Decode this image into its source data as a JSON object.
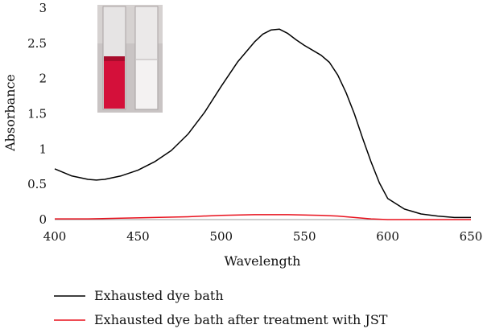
{
  "chart_data": {
    "type": "line",
    "title": "",
    "xlabel": "Wavelength",
    "ylabel": "Absorbance",
    "xlim": [
      400,
      650
    ],
    "ylim": [
      0,
      3
    ],
    "xticks": [
      400,
      450,
      500,
      550,
      600,
      650
    ],
    "yticks": [
      0,
      0.5,
      1,
      1.5,
      2,
      2.5,
      3
    ],
    "grid": false,
    "legend_position": "bottom",
    "series": [
      {
        "name": "Exhausted dye bath",
        "color": "#000000",
        "x": [
          400,
          410,
          420,
          425,
          430,
          440,
          450,
          460,
          470,
          480,
          490,
          500,
          510,
          520,
          525,
          530,
          535,
          540,
          545,
          550,
          560,
          565,
          570,
          575,
          580,
          585,
          590,
          595,
          600,
          610,
          620,
          630,
          640,
          650
        ],
        "y": [
          0.72,
          0.62,
          0.57,
          0.56,
          0.57,
          0.62,
          0.7,
          0.82,
          0.98,
          1.21,
          1.52,
          1.89,
          2.24,
          2.52,
          2.63,
          2.69,
          2.7,
          2.64,
          2.55,
          2.47,
          2.33,
          2.23,
          2.05,
          1.8,
          1.5,
          1.15,
          0.82,
          0.52,
          0.3,
          0.15,
          0.08,
          0.05,
          0.03,
          0.03
        ]
      },
      {
        "name": "Exhausted dye bath after treatment with JST",
        "color": "#e8101c",
        "x": [
          400,
          420,
          440,
          460,
          480,
          500,
          520,
          530,
          540,
          560,
          570,
          580,
          590,
          600,
          620,
          650
        ],
        "y": [
          0.01,
          0.01,
          0.02,
          0.03,
          0.04,
          0.06,
          0.07,
          0.07,
          0.07,
          0.06,
          0.05,
          0.03,
          0.01,
          0.0,
          0.0,
          0.0
        ]
      }
    ],
    "inset": {
      "content": "photo of two test tubes: red dye solution (left) and clear treated solution (right)",
      "colors": {
        "background": "#c9c2c2",
        "dye": "#d4103a",
        "clear": "#ececec"
      }
    }
  }
}
